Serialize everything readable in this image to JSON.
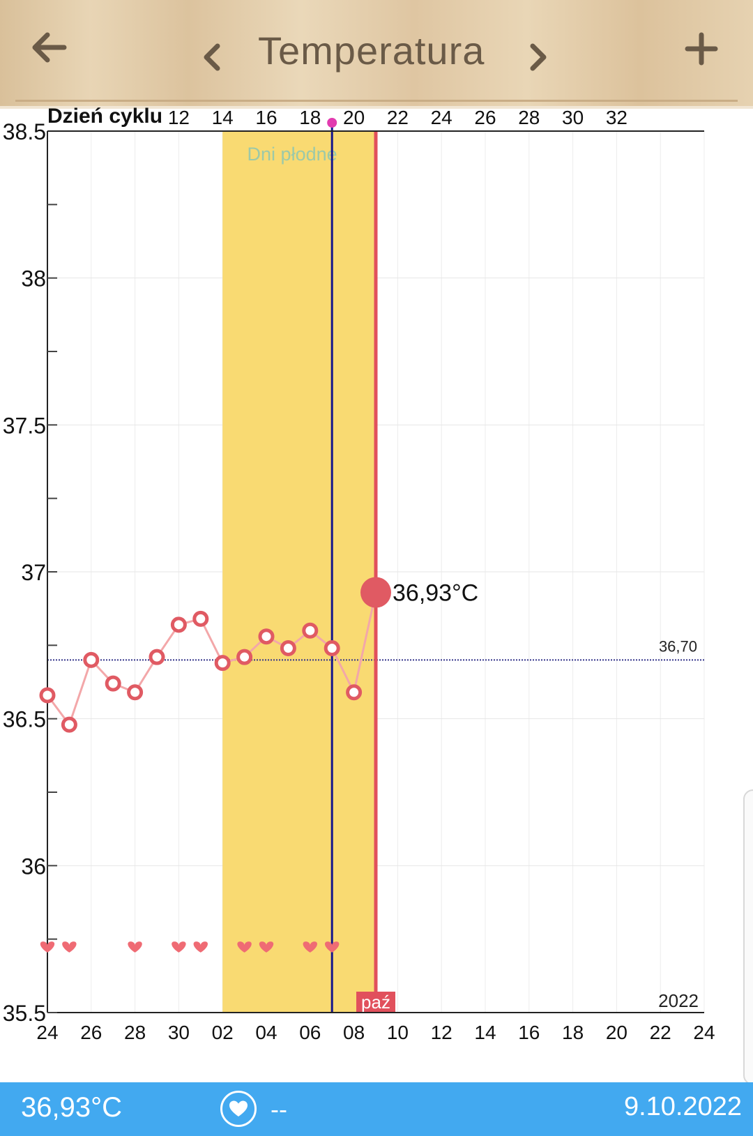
{
  "header": {
    "title": "Temperatura",
    "back_icon": "arrow-left-icon",
    "prev_icon": "chevron-left-icon",
    "next_icon": "chevron-right-icon",
    "add_icon": "plus-icon"
  },
  "colors": {
    "fertile": "#f9da72",
    "today_line": "#e1505c",
    "ovulation_line": "#14148c",
    "point": "#e05a63",
    "connector": "#f3a7a9",
    "bottom_bar": "#42a9f0"
  },
  "chart_data": {
    "type": "line",
    "cycle_label": "Dzień cyklu",
    "cycle_ticks": [
      "12",
      "14",
      "16",
      "18",
      "20",
      "22",
      "24",
      "26",
      "28",
      "30",
      "32"
    ],
    "date_ticks": [
      "24",
      "26",
      "28",
      "30",
      "02",
      "04",
      "06",
      "08",
      "10",
      "12",
      "14",
      "16",
      "18",
      "20",
      "22",
      "24"
    ],
    "y_ticks": [
      "38.5",
      "38",
      "37.5",
      "37",
      "36.5",
      "36",
      "35.5"
    ],
    "ylim": [
      35.5,
      38.5
    ],
    "year_label": "2022",
    "month_label": "paź",
    "fertile_label": "Dni płodne",
    "fertile_window": {
      "start": "2022-10-02",
      "end": "2022-10-08"
    },
    "ovulation_date": "2022-10-07",
    "today": "2022-10-09",
    "coverline": 36.7,
    "coverline_label": "36,70",
    "latest_value_label": "36,93°C",
    "temperatures": [
      {
        "date": "2022-09-24",
        "value": 36.58
      },
      {
        "date": "2022-09-25",
        "value": 36.48
      },
      {
        "date": "2022-09-26",
        "value": 36.7
      },
      {
        "date": "2022-09-27",
        "value": 36.62
      },
      {
        "date": "2022-09-28",
        "value": 36.59
      },
      {
        "date": "2022-09-29",
        "value": 36.71
      },
      {
        "date": "2022-09-30",
        "value": 36.82
      },
      {
        "date": "2022-10-01",
        "value": 36.84
      },
      {
        "date": "2022-10-02",
        "value": 36.69
      },
      {
        "date": "2022-10-03",
        "value": 36.71
      },
      {
        "date": "2022-10-04",
        "value": 36.78
      },
      {
        "date": "2022-10-05",
        "value": 36.74
      },
      {
        "date": "2022-10-06",
        "value": 36.8
      },
      {
        "date": "2022-10-07",
        "value": 36.74
      },
      {
        "date": "2022-10-08",
        "value": 36.59
      },
      {
        "date": "2022-10-09",
        "value": 36.93
      }
    ],
    "intercourse_dates": [
      "2022-09-24",
      "2022-09-25",
      "2022-09-28",
      "2022-09-30",
      "2022-10-01",
      "2022-10-03",
      "2022-10-04",
      "2022-10-06",
      "2022-10-07"
    ]
  },
  "footer": {
    "temperature": "36,93°C",
    "heart_icon": "heart-icon",
    "intercourse_value": "--",
    "date": "9.10.2022"
  }
}
